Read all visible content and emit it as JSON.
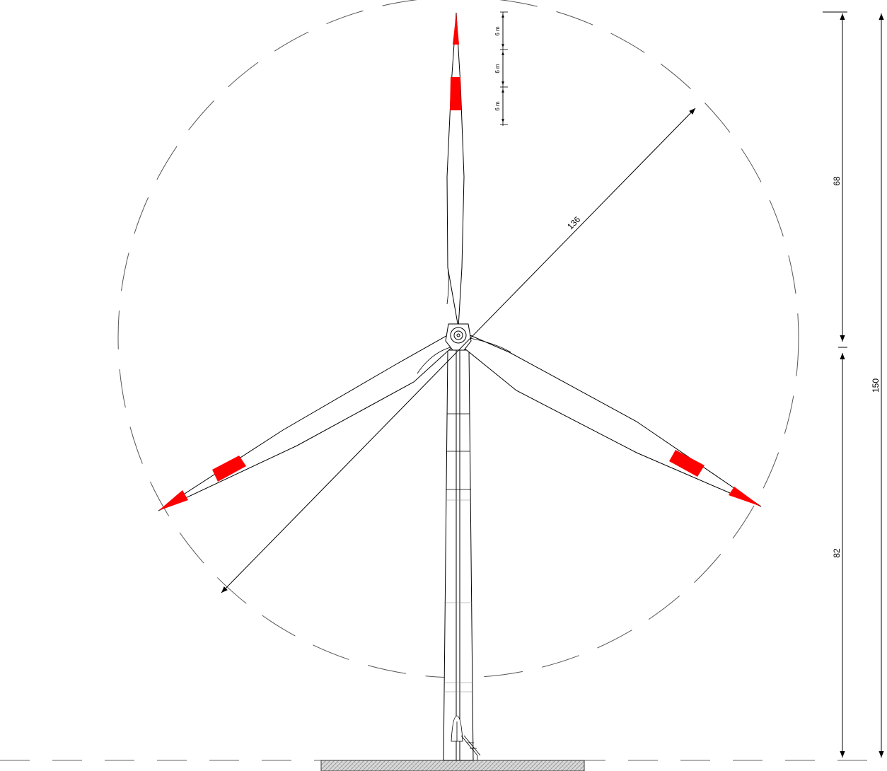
{
  "drawing": {
    "dimensions": {
      "rotor_diameter": "136",
      "rotor_radius": "68",
      "hub_height": "82",
      "total_height": "150",
      "marking_segment_1": "6 m",
      "marking_segment_2": "6 m",
      "marking_segment_3": "6 m"
    },
    "colors": {
      "marking": "#ff0000",
      "line": "#000000",
      "sweep_circle": "#555555",
      "foundation_fill": "#cccccc"
    }
  }
}
